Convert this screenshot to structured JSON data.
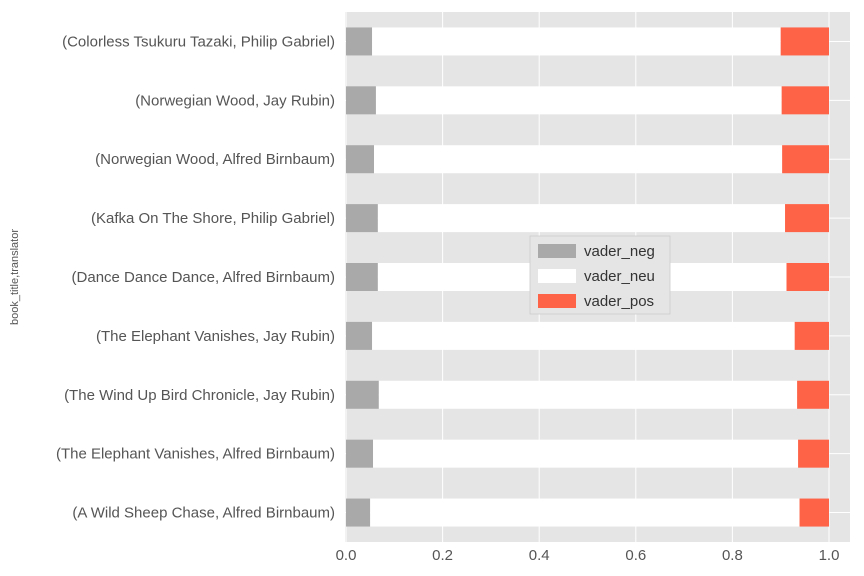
{
  "chart_data": {
    "type": "bar",
    "orientation": "horizontal",
    "stacked": true,
    "ylabel": "book_title,translator",
    "xlabel": "",
    "xlim": [
      0.0,
      1.0
    ],
    "xticks": [
      "0.0",
      "0.2",
      "0.4",
      "0.6",
      "0.8",
      "1.0"
    ],
    "grid": true,
    "legend_position": "center-right",
    "categories": [
      "(Colorless Tsukuru Tazaki, Philip Gabriel)",
      "(Norwegian Wood, Jay Rubin)",
      "(Norwegian Wood, Alfred Birnbaum)",
      "(Kafka On The Shore, Philip Gabriel)",
      "(Dance Dance Dance, Alfred Birnbaum)",
      "(The Elephant Vanishes, Jay Rubin)",
      "(The Wind Up Bird Chronicle, Jay Rubin)",
      "(The Elephant Vanishes, Alfred Birnbaum)",
      "(A Wild Sheep Chase, Alfred Birnbaum)"
    ],
    "series": [
      {
        "name": "vader_neg",
        "color": "#a9a9a9",
        "values": [
          0.054,
          0.062,
          0.058,
          0.066,
          0.066,
          0.054,
          0.068,
          0.056,
          0.05
        ]
      },
      {
        "name": "vader_neu",
        "color": "#ffffff",
        "values": [
          0.846,
          0.84,
          0.845,
          0.843,
          0.846,
          0.875,
          0.866,
          0.88,
          0.889
        ]
      },
      {
        "name": "vader_pos",
        "color": "#ff6347",
        "values": [
          0.1,
          0.098,
          0.097,
          0.091,
          0.088,
          0.071,
          0.066,
          0.064,
          0.061
        ]
      }
    ]
  }
}
